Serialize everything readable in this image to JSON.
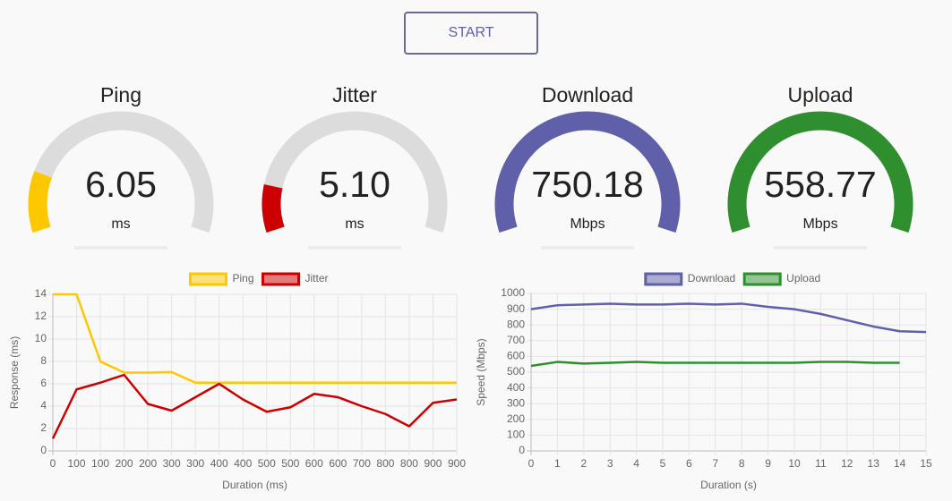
{
  "button": {
    "label": "START"
  },
  "gauges": [
    {
      "title": "Ping",
      "value": "6.05",
      "unit": "ms",
      "color": "#fdc800"
    },
    {
      "title": "Jitter",
      "value": "5.10",
      "unit": "ms",
      "color": "#cc0000"
    },
    {
      "title": "Download",
      "value": "750.18",
      "unit": "Mbps",
      "color": "#6060aa"
    },
    {
      "title": "Upload",
      "value": "558.77",
      "unit": "Mbps",
      "color": "#2f8f2f"
    }
  ],
  "chart_data": [
    {
      "type": "line",
      "x_label": "Duration (ms)",
      "y_label": "Response (ms)",
      "categories": [
        "0",
        "100",
        "100",
        "200",
        "200",
        "300",
        "300",
        "400",
        "400",
        "500",
        "500",
        "600",
        "600",
        "700",
        "800",
        "800",
        "900",
        "900"
      ],
      "series": [
        {
          "name": "Ping",
          "color": "#fdc800",
          "values": [
            14,
            14,
            8,
            7,
            7,
            7.05,
            6.1,
            6.1,
            6.1,
            6.1,
            6.1,
            6.1,
            6.1,
            6.1,
            6.1,
            6.1,
            6.1,
            6.1
          ]
        },
        {
          "name": "Jitter",
          "color": "#cc0000",
          "values": [
            1.1,
            5.5,
            6.1,
            6.8,
            4.2,
            3.6,
            4.8,
            6.0,
            4.6,
            3.5,
            3.9,
            5.1,
            4.8,
            4.0,
            3.3,
            2.2,
            4.3,
            4.6
          ]
        }
      ],
      "ylim": [
        0,
        14
      ],
      "yticks": [
        0,
        2,
        4,
        6,
        8,
        10,
        12,
        14
      ],
      "grid": true,
      "legend": "top"
    },
    {
      "type": "line",
      "x_label": "Duration (s)",
      "y_label": "Speed (Mbps)",
      "x": [
        0,
        1,
        2,
        3,
        4,
        5,
        6,
        7,
        8,
        9,
        10,
        11,
        12,
        13,
        14,
        15
      ],
      "series": [
        {
          "name": "Download",
          "color": "#6060aa",
          "values": [
            900,
            925,
            930,
            935,
            930,
            930,
            935,
            930,
            935,
            915,
            900,
            870,
            830,
            790,
            760,
            755
          ]
        },
        {
          "name": "Upload",
          "color": "#2f8f2f",
          "values": [
            540,
            565,
            555,
            560,
            565,
            560,
            560,
            560,
            560,
            560,
            560,
            565,
            565,
            560,
            560,
            null
          ]
        }
      ],
      "xlim": [
        0,
        15
      ],
      "xticks": [
        0,
        1,
        2,
        3,
        4,
        5,
        6,
        7,
        8,
        9,
        10,
        11,
        12,
        13,
        14,
        15
      ],
      "ylim": [
        0,
        1000
      ],
      "yticks": [
        0,
        100,
        200,
        300,
        400,
        500,
        600,
        700,
        800,
        900,
        1000
      ],
      "grid": true,
      "legend": "top"
    }
  ]
}
